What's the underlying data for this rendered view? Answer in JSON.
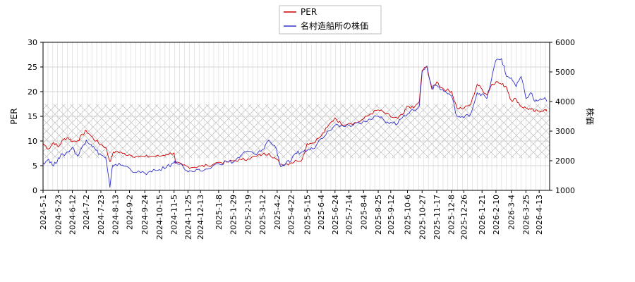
{
  "chart_data": {
    "type": "line",
    "legend": [
      "PER",
      "名村造船所の株価"
    ],
    "series": [
      {
        "name": "PER",
        "color": "#cc0000",
        "axis": "left",
        "points": [
          [
            "2024-05-01",
            9.5
          ],
          [
            "2024-05-09",
            8.4
          ],
          [
            "2024-05-16",
            9.7
          ],
          [
            "2024-05-23",
            8.8
          ],
          [
            "2024-05-30",
            10.3
          ],
          [
            "2024-06-06",
            10.7
          ],
          [
            "2024-06-12",
            9.9
          ],
          [
            "2024-06-20",
            10.1
          ],
          [
            "2024-06-27",
            11.3
          ],
          [
            "2024-07-02",
            12.1
          ],
          [
            "2024-07-09",
            11.0
          ],
          [
            "2024-07-16",
            10.0
          ],
          [
            "2024-07-23",
            9.3
          ],
          [
            "2024-07-30",
            8.7
          ],
          [
            "2024-08-05",
            5.8
          ],
          [
            "2024-08-09",
            7.4
          ],
          [
            "2024-08-13",
            7.9
          ],
          [
            "2024-08-23",
            7.5
          ],
          [
            "2024-09-02",
            7.2
          ],
          [
            "2024-09-12",
            6.9
          ],
          [
            "2024-09-24",
            6.8
          ],
          [
            "2024-10-04",
            6.9
          ],
          [
            "2024-10-15",
            6.9
          ],
          [
            "2024-10-25",
            7.3
          ],
          [
            "2024-11-05",
            7.6
          ],
          [
            "2024-11-07",
            5.5
          ],
          [
            "2024-11-18",
            5.1
          ],
          [
            "2024-11-25",
            4.8
          ],
          [
            "2024-12-05",
            4.7
          ],
          [
            "2024-12-13",
            4.9
          ],
          [
            "2024-12-23",
            5.0
          ],
          [
            "2025-01-08",
            5.7
          ],
          [
            "2025-01-20",
            5.7
          ],
          [
            "2025-01-29",
            6.0
          ],
          [
            "2025-02-10",
            6.2
          ],
          [
            "2025-02-19",
            6.4
          ],
          [
            "2025-03-03",
            6.9
          ],
          [
            "2025-03-12",
            7.3
          ],
          [
            "2025-03-21",
            7.5
          ],
          [
            "2025-04-01",
            6.3
          ],
          [
            "2025-04-07",
            5.3
          ],
          [
            "2025-04-14",
            5.3
          ],
          [
            "2025-04-22",
            5.6
          ],
          [
            "2025-04-30",
            6.0
          ],
          [
            "2025-05-08",
            6.3
          ],
          [
            "2025-05-15",
            9.5
          ],
          [
            "2025-05-23",
            9.6
          ],
          [
            "2025-06-04",
            11.0
          ],
          [
            "2025-06-13",
            12.8
          ],
          [
            "2025-06-24",
            14.7
          ],
          [
            "2025-07-03",
            13.4
          ],
          [
            "2025-07-14",
            13.6
          ],
          [
            "2025-07-25",
            13.7
          ],
          [
            "2025-08-04",
            14.5
          ],
          [
            "2025-08-14",
            15.5
          ],
          [
            "2025-08-25",
            16.3
          ],
          [
            "2025-09-03",
            15.7
          ],
          [
            "2025-09-12",
            14.9
          ],
          [
            "2025-09-22",
            14.6
          ],
          [
            "2025-10-01",
            15.6
          ],
          [
            "2025-10-06",
            17.1
          ],
          [
            "2025-10-15",
            16.7
          ],
          [
            "2025-10-23",
            18.0
          ],
          [
            "2025-10-27",
            24.3
          ],
          [
            "2025-11-03",
            25.0
          ],
          [
            "2025-11-10",
            20.5
          ],
          [
            "2025-11-17",
            22.0
          ],
          [
            "2025-11-24",
            20.8
          ],
          [
            "2025-12-01",
            20.3
          ],
          [
            "2025-12-08",
            20.1
          ],
          [
            "2025-12-16",
            16.7
          ],
          [
            "2025-12-26",
            16.6
          ],
          [
            "2026-01-05",
            17.5
          ],
          [
            "2026-01-14",
            21.5
          ],
          [
            "2026-01-21",
            20.5
          ],
          [
            "2026-01-28",
            19.3
          ],
          [
            "2026-02-04",
            21.5
          ],
          [
            "2026-02-10",
            22.0
          ],
          [
            "2026-02-18",
            21.5
          ],
          [
            "2026-02-25",
            21.0
          ],
          [
            "2026-03-04",
            18.2
          ],
          [
            "2026-03-11",
            18.5
          ],
          [
            "2026-03-18",
            17.0
          ],
          [
            "2026-03-25",
            16.7
          ],
          [
            "2026-04-01",
            16.4
          ],
          [
            "2026-04-07",
            16.0
          ],
          [
            "2026-04-13",
            16.1
          ],
          [
            "2026-04-20",
            16.3
          ],
          [
            "2026-04-24",
            16.0
          ]
        ]
      },
      {
        "name": "名村造船所の株価",
        "color": "#3333cc",
        "axis": "right",
        "points": [
          [
            "2024-05-01",
            1920
          ],
          [
            "2024-05-09",
            2050
          ],
          [
            "2024-05-16",
            1820
          ],
          [
            "2024-05-23",
            2100
          ],
          [
            "2024-05-30",
            2200
          ],
          [
            "2024-06-06",
            2300
          ],
          [
            "2024-06-12",
            2450
          ],
          [
            "2024-06-20",
            2150
          ],
          [
            "2024-06-27",
            2500
          ],
          [
            "2024-07-02",
            2700
          ],
          [
            "2024-07-09",
            2550
          ],
          [
            "2024-07-16",
            2350
          ],
          [
            "2024-07-23",
            2200
          ],
          [
            "2024-07-30",
            2100
          ],
          [
            "2024-08-05",
            1100
          ],
          [
            "2024-08-09",
            1850
          ],
          [
            "2024-08-13",
            1880
          ],
          [
            "2024-08-23",
            1850
          ],
          [
            "2024-09-02",
            1750
          ],
          [
            "2024-09-12",
            1600
          ],
          [
            "2024-09-24",
            1580
          ],
          [
            "2024-10-04",
            1620
          ],
          [
            "2024-10-15",
            1700
          ],
          [
            "2024-10-25",
            1780
          ],
          [
            "2024-11-05",
            1930
          ],
          [
            "2024-11-07",
            2000
          ],
          [
            "2024-11-18",
            1800
          ],
          [
            "2024-11-25",
            1620
          ],
          [
            "2024-12-05",
            1640
          ],
          [
            "2024-12-13",
            1650
          ],
          [
            "2024-12-23",
            1720
          ],
          [
            "2025-01-08",
            1900
          ],
          [
            "2025-01-20",
            1970
          ],
          [
            "2025-01-29",
            1950
          ],
          [
            "2025-02-10",
            2200
          ],
          [
            "2025-02-19",
            2320
          ],
          [
            "2025-03-03",
            2200
          ],
          [
            "2025-03-12",
            2380
          ],
          [
            "2025-03-21",
            2700
          ],
          [
            "2025-04-01",
            2400
          ],
          [
            "2025-04-07",
            1800
          ],
          [
            "2025-04-14",
            1900
          ],
          [
            "2025-04-22",
            2000
          ],
          [
            "2025-04-30",
            2250
          ],
          [
            "2025-05-08",
            2300
          ],
          [
            "2025-05-15",
            2350
          ],
          [
            "2025-05-23",
            2400
          ],
          [
            "2025-06-04",
            2750
          ],
          [
            "2025-06-13",
            3000
          ],
          [
            "2025-06-24",
            3200
          ],
          [
            "2025-07-03",
            3200
          ],
          [
            "2025-07-14",
            3200
          ],
          [
            "2025-07-25",
            3280
          ],
          [
            "2025-08-04",
            3350
          ],
          [
            "2025-08-14",
            3400
          ],
          [
            "2025-08-25",
            3500
          ],
          [
            "2025-09-03",
            3350
          ],
          [
            "2025-09-12",
            3300
          ],
          [
            "2025-09-22",
            3250
          ],
          [
            "2025-10-01",
            3550
          ],
          [
            "2025-10-06",
            3580
          ],
          [
            "2025-10-15",
            3700
          ],
          [
            "2025-10-23",
            3850
          ],
          [
            "2025-10-27",
            5000
          ],
          [
            "2025-11-03",
            5200
          ],
          [
            "2025-11-10",
            4450
          ],
          [
            "2025-11-17",
            4550
          ],
          [
            "2025-11-24",
            4400
          ],
          [
            "2025-12-01",
            4300
          ],
          [
            "2025-12-08",
            4200
          ],
          [
            "2025-12-16",
            3500
          ],
          [
            "2025-12-26",
            3450
          ],
          [
            "2026-01-05",
            3600
          ],
          [
            "2026-01-14",
            4300
          ],
          [
            "2026-01-21",
            4250
          ],
          [
            "2026-01-28",
            4100
          ],
          [
            "2026-02-04",
            4800
          ],
          [
            "2026-02-10",
            5400
          ],
          [
            "2026-02-18",
            5450
          ],
          [
            "2026-02-25",
            4850
          ],
          [
            "2026-03-04",
            4800
          ],
          [
            "2026-03-11",
            4500
          ],
          [
            "2026-03-18",
            4850
          ],
          [
            "2026-03-25",
            4100
          ],
          [
            "2026-04-01",
            4300
          ],
          [
            "2026-04-07",
            4000
          ],
          [
            "2026-04-13",
            4050
          ],
          [
            "2026-04-20",
            4100
          ],
          [
            "2026-04-24",
            4000
          ]
        ]
      }
    ],
    "left_axis": {
      "label": "PER",
      "ylim": [
        0,
        30
      ],
      "ticks": [
        "0",
        "5",
        "10",
        "15",
        "20",
        "25",
        "30"
      ]
    },
    "right_axis": {
      "label": "株価",
      "ylim": [
        1000,
        6000
      ],
      "ticks": [
        "1000",
        "2000",
        "3000",
        "4000",
        "5000",
        "6000"
      ]
    },
    "x_axis": {
      "range": [
        "2024-05-01",
        "2026-04-28"
      ],
      "ticks": [
        "2024-5-1",
        "2024-5-23",
        "2024-6-12",
        "2024-7-2",
        "2024-7-23",
        "2024-8-13",
        "2024-9-2",
        "2024-9-24",
        "2024-10-15",
        "2024-11-5",
        "2024-11-25",
        "2024-12-13",
        "2025-1-8",
        "2025-1-29",
        "2025-2-19",
        "2025-3-12",
        "2025-4-2",
        "2025-4-22",
        "2025-5-15",
        "2025-6-4",
        "2025-6-24",
        "2025-7-14",
        "2025-8-4",
        "2025-8-25",
        "2025-9-12",
        "2025-10-6",
        "2025-10-27",
        "2025-11-17",
        "2025-12-8",
        "2025-12-26",
        "2026-1-21",
        "2026-2-10",
        "2026-3-4",
        "2026-3-25",
        "2026-4-13"
      ]
    },
    "band": {
      "from": 6.5,
      "to": 17.5,
      "pattern": "crosshatch",
      "color": "#b0b0b0"
    },
    "grid": true
  }
}
